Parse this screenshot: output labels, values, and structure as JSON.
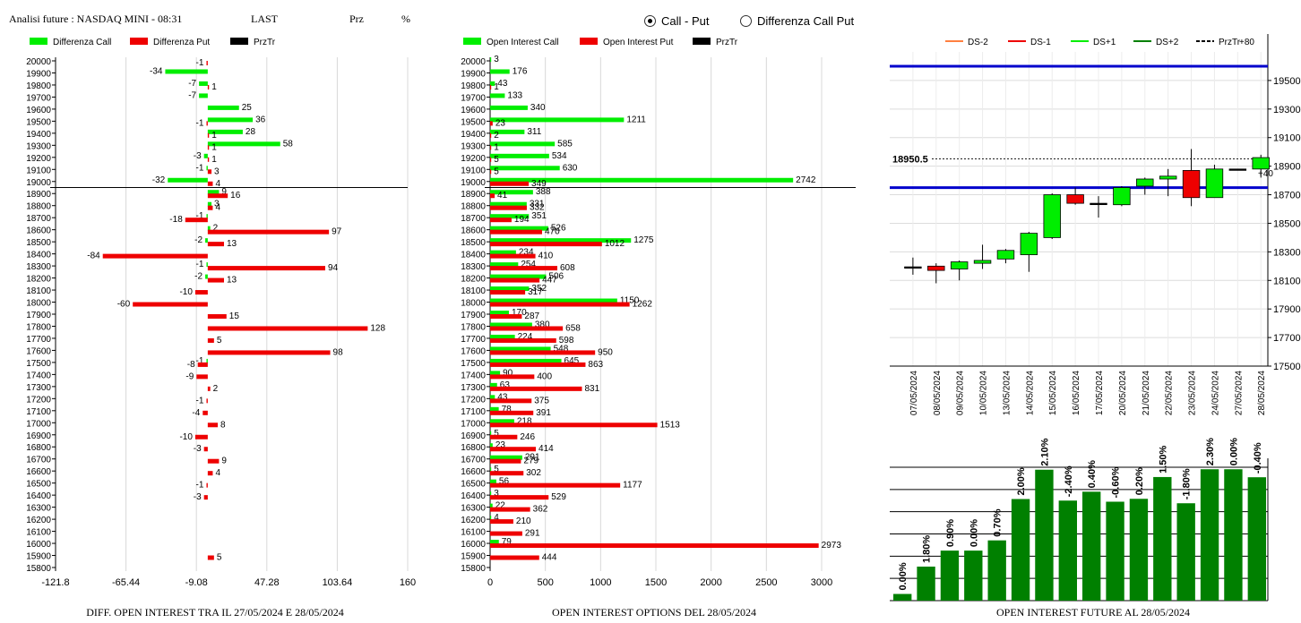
{
  "header": {
    "title": "Analisi future : NASDAQ MINI - 08:31",
    "last_label": "LAST",
    "prz_label": "Prz",
    "pct_label": "%"
  },
  "toggle": {
    "options": [
      "Call - Put",
      "Differenza Call Put"
    ],
    "selected": 0
  },
  "colors": {
    "green": "#00ee00",
    "red": "#ee0000",
    "black": "#000000",
    "blue": "#0000cc",
    "darkgreen": "#008000"
  },
  "chart_data": [
    {
      "type": "bar",
      "orientation": "horizontal",
      "legend": [
        "Differenza Call",
        "Differenza Put",
        "PrzTr"
      ],
      "strikes": [
        "20000",
        "19900",
        "19800",
        "19700",
        "19600",
        "19500",
        "19400",
        "19300",
        "19200",
        "19100",
        "19000",
        "18900",
        "18800",
        "18700",
        "18600",
        "18500",
        "18400",
        "18300",
        "18200",
        "18100",
        "18000",
        "17900",
        "17800",
        "17700",
        "17600",
        "17500",
        "17400",
        "17300",
        "17200",
        "17100",
        "17000",
        "16900",
        "16800",
        "16700",
        "16600",
        "16500",
        "16400",
        "16300",
        "16200",
        "16100",
        "16000",
        "15900",
        "15800"
      ],
      "series": [
        {
          "name": "Differenza Call",
          "values": [
            null,
            -34,
            -7,
            -7,
            25,
            36,
            28,
            58,
            -3,
            -1,
            -32,
            9,
            3,
            -1,
            2,
            -2,
            null,
            -1,
            -2,
            null,
            null,
            null,
            null,
            null,
            null,
            -1,
            null,
            null,
            null,
            null,
            null,
            null,
            null,
            null,
            null,
            null,
            null,
            null,
            null,
            null,
            null,
            null,
            null
          ]
        },
        {
          "name": "Differenza Put",
          "values": [
            -1,
            null,
            1,
            null,
            null,
            -1,
            1,
            1,
            1,
            3,
            4,
            16,
            4,
            -18,
            97,
            13,
            -84,
            94,
            13,
            -10,
            -60,
            15,
            128,
            5,
            98,
            -8,
            -9,
            2,
            -1,
            -4,
            8,
            -10,
            -3,
            9,
            4,
            -1,
            -3,
            null,
            null,
            null,
            null,
            5,
            null
          ]
        }
      ],
      "price_line": "18950.5",
      "xticks": [
        "-121.8",
        "-65.44",
        "-9.08",
        "47.28",
        "103.64",
        "160"
      ],
      "xlim": [
        -121.8,
        160
      ],
      "caption": "DIFF. OPEN INTEREST TRA IL 27/05/2024 E 28/05/2024"
    },
    {
      "type": "bar",
      "orientation": "horizontal",
      "legend": [
        "Open Interest Call",
        "Open Interest Put",
        "PrzTr"
      ],
      "strikes": [
        "20000",
        "19900",
        "19800",
        "19700",
        "19600",
        "19500",
        "19400",
        "19300",
        "19200",
        "19100",
        "19000",
        "18900",
        "18800",
        "18700",
        "18600",
        "18500",
        "18400",
        "18300",
        "18200",
        "18100",
        "18000",
        "17900",
        "17800",
        "17700",
        "17600",
        "17500",
        "17400",
        "17300",
        "17200",
        "17100",
        "17000",
        "16900",
        "16800",
        "16700",
        "16600",
        "16500",
        "16400",
        "16300",
        "16200",
        "16100",
        "16000",
        "15900",
        "15800"
      ],
      "series": [
        {
          "name": "Open Interest Call",
          "values": [
            3,
            176,
            43,
            133,
            340,
            1211,
            311,
            585,
            534,
            630,
            2742,
            388,
            331,
            351,
            526,
            1275,
            234,
            254,
            506,
            352,
            1150,
            170,
            380,
            224,
            548,
            645,
            90,
            63,
            43,
            78,
            218,
            5,
            23,
            291,
            5,
            56,
            3,
            22,
            4,
            null,
            79,
            null,
            null
          ]
        },
        {
          "name": "Open Interest Put",
          "values": [
            null,
            null,
            1,
            null,
            null,
            23,
            2,
            1,
            5,
            5,
            349,
            41,
            332,
            194,
            470,
            1012,
            410,
            608,
            447,
            317,
            1262,
            287,
            658,
            598,
            950,
            863,
            400,
            831,
            375,
            391,
            1513,
            246,
            414,
            279,
            302,
            1177,
            529,
            362,
            210,
            291,
            2973,
            444,
            null
          ]
        }
      ],
      "xticks": [
        "0",
        "500",
        "1000",
        "1500",
        "2000",
        "2500",
        "3000"
      ],
      "xlim": [
        0,
        3000
      ],
      "caption": "OPEN INTEREST OPTIONS DEL 28/05/2024"
    },
    {
      "type": "candlestick",
      "legend": [
        "DS-2",
        "DS-1",
        "DS+1",
        "DS+2",
        "PrzTr",
        "+80"
      ],
      "dates": [
        "07/05/2024",
        "08/05/2024",
        "09/05/2024",
        "10/05/2024",
        "13/05/2024",
        "14/05/2024",
        "15/05/2024",
        "16/05/2024",
        "17/05/2024",
        "20/05/2024",
        "21/05/2024",
        "22/05/2024",
        "23/05/2024",
        "24/05/2024",
        "27/05/2024",
        "28/05/2024"
      ],
      "candles": [
        {
          "o": 18195,
          "c": 18195,
          "h": 18260,
          "l": 18140
        },
        {
          "o": 18200,
          "c": 18170,
          "h": 18220,
          "l": 18080
        },
        {
          "o": 18180,
          "c": 18230,
          "h": 18240,
          "l": 18100
        },
        {
          "o": 18220,
          "c": 18240,
          "h": 18350,
          "l": 18180
        },
        {
          "o": 18250,
          "c": 18310,
          "h": 18320,
          "l": 18220
        },
        {
          "o": 18280,
          "c": 18430,
          "h": 18440,
          "l": 18160
        },
        {
          "o": 18400,
          "c": 18700,
          "h": 18710,
          "l": 18390
        },
        {
          "o": 18700,
          "c": 18640,
          "h": 18750,
          "l": 18630
        },
        {
          "o": 18640,
          "c": 18640,
          "h": 18690,
          "l": 18540
        },
        {
          "o": 18630,
          "c": 18750,
          "h": 18760,
          "l": 18620
        },
        {
          "o": 18760,
          "c": 18810,
          "h": 18820,
          "l": 18700
        },
        {
          "o": 18810,
          "c": 18830,
          "h": 18880,
          "l": 18690
        },
        {
          "o": 18870,
          "c": 18680,
          "h": 19020,
          "l": 18620
        },
        {
          "o": 18680,
          "c": 18880,
          "h": 18910,
          "l": 18680
        },
        {
          "o": 18880,
          "c": 18880,
          "h": 18880,
          "l": 18880
        },
        {
          "o": 18880,
          "c": 18960,
          "h": 18980,
          "l": 18820
        }
      ],
      "yticks": [
        "19500",
        "19300",
        "19100",
        "18900",
        "18700",
        "18500",
        "18300",
        "18100",
        "17900",
        "17700",
        "17500"
      ],
      "ylim": [
        17500,
        19700
      ],
      "blue_lines": [
        19600,
        18750
      ],
      "price_label": "18950.5",
      "price_value": 18950.5,
      "annotations": [
        "+40"
      ],
      "bars": {
        "type": "bar",
        "labels": [
          "0.00%",
          "1.80%",
          "0.90%",
          "0.00%",
          "0.70%",
          "2.00%",
          "2.10%",
          "-2.40%",
          "0.40%",
          "-0.60%",
          "0.20%",
          "1.50%",
          "-1.80%",
          "2.30%",
          "0.00%",
          "-0.40%"
        ],
        "values": [
          0.3,
          1.53,
          2.25,
          2.25,
          2.71,
          4.57,
          5.89,
          4.5,
          4.9,
          4.45,
          4.58,
          5.56,
          4.38,
          5.91,
          5.91,
          5.55
        ]
      },
      "caption": "OPEN INTEREST FUTURE AL 28/05/2024"
    }
  ]
}
